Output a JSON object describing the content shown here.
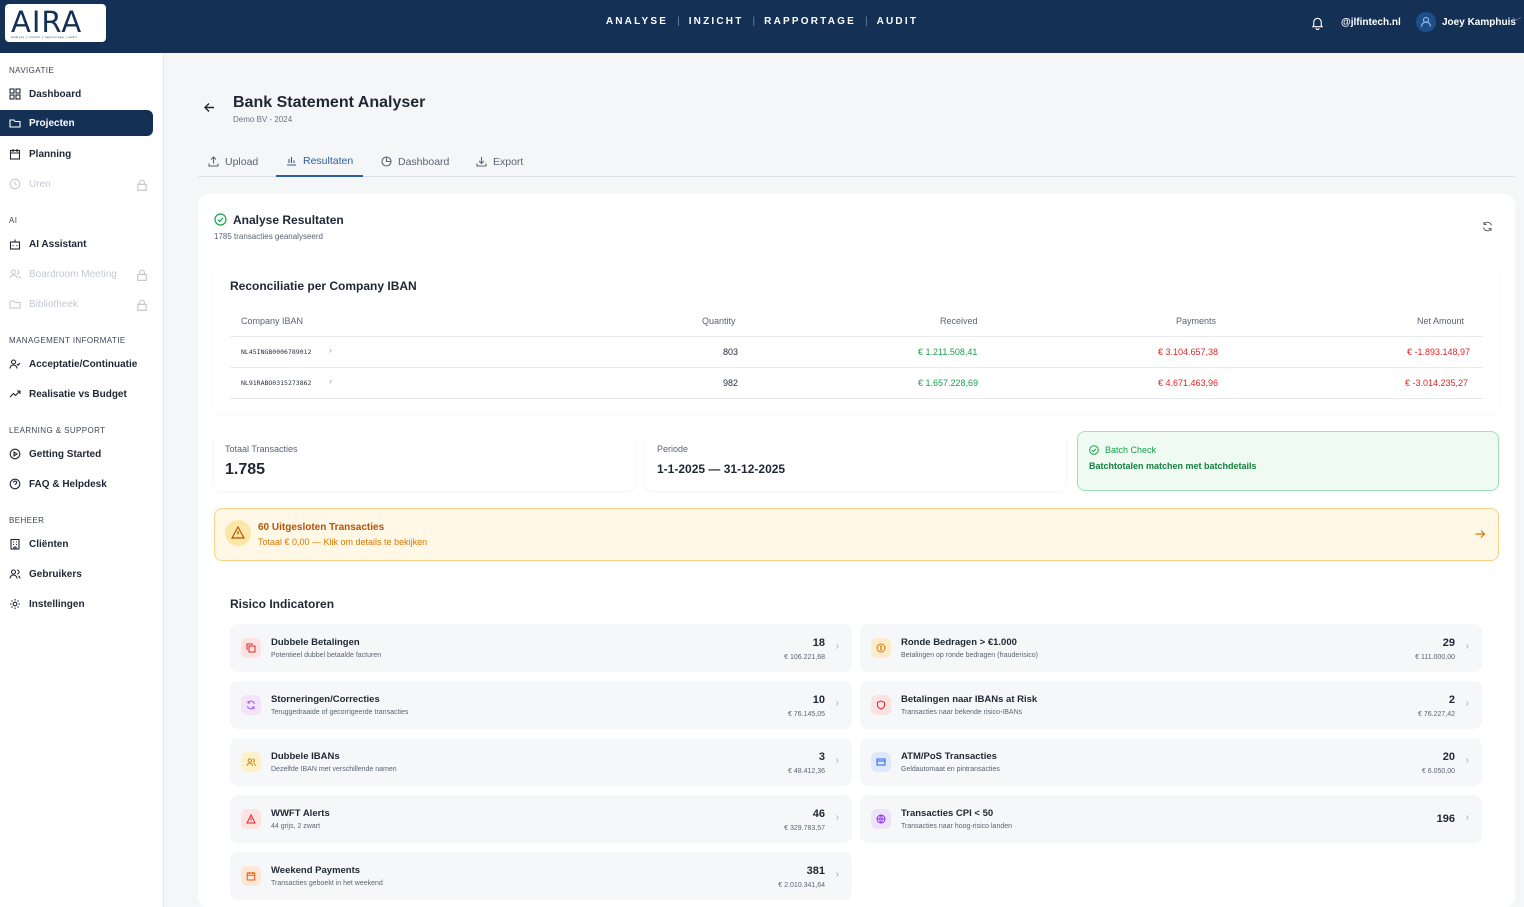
{
  "brand": {
    "logo": "AIRA",
    "tagline": "analyse | inzicht | rapportage | audit"
  },
  "topnav": [
    "ANALYSE",
    "INZICHT",
    "RAPPORTAGE",
    "AUDIT"
  ],
  "header": {
    "org": "@jlfintech.nl",
    "user": "Joey Kamphuis"
  },
  "sidebar": {
    "sections": {
      "nav": "NAVIGATIE",
      "ai": "AI",
      "mgmt": "MANAGEMENT INFORMATIE",
      "learning": "LEARNING & SUPPORT",
      "beheer": "BEHEER"
    },
    "items": {
      "dashboard": "Dashboard",
      "projecten": "Projecten",
      "planning": "Planning",
      "uren": "Uren",
      "ai_assistant": "AI Assistant",
      "boardroom": "Boardroom Meeting",
      "bibliotheek": "Bibliotheek",
      "acceptatie": "Acceptatie/Continuatie",
      "realisatie": "Realisatie vs Budget",
      "getting_started": "Getting Started",
      "faq": "FAQ & Helpdesk",
      "clienten": "Cliënten",
      "gebruikers": "Gebruikers",
      "instellingen": "Instellingen"
    }
  },
  "page": {
    "title": "Bank Statement Analyser",
    "subtitle": "Demo BV - 2024"
  },
  "tabs": {
    "upload": "Upload",
    "resultaten": "Resultaten",
    "dashboard": "Dashboard",
    "export": "Export"
  },
  "results": {
    "title": "Analyse Resultaten",
    "subtitle": "1785 transacties geanalyseerd"
  },
  "recon": {
    "title": "Reconciliatie per Company IBAN",
    "headers": {
      "iban": "Company IBAN",
      "quantity": "Quantity",
      "received": "Received",
      "payments": "Payments",
      "net": "Net Amount"
    },
    "rows": [
      {
        "iban": "NL45INGB0006789012",
        "quantity": "803",
        "received": "€ 1.211.508,41",
        "payments": "€ 3.104.657,38",
        "net": "€ -1.893.148,97"
      },
      {
        "iban": "NL91RABO0315273862",
        "quantity": "982",
        "received": "€ 1.657.228,69",
        "payments": "€ 4.671.463,96",
        "net": "€ -3.014.235,27"
      }
    ]
  },
  "stats": {
    "total_label": "Totaal Transacties",
    "total_value": "1.785",
    "period_label": "Periode",
    "period_value": "1-1-2025 — 31-12-2025",
    "batch_label": "Batch Check",
    "batch_text": "Batchtotalen matchen met batchdetails"
  },
  "excluded": {
    "title": "60 Uitgesloten Transacties",
    "subtitle": "Totaal € 0,00 — Klik om details te bekijken"
  },
  "risk": {
    "title": "Risico Indicatoren",
    "items": [
      {
        "name": "Dubbele Betalingen",
        "desc": "Potentieel dubbel betaalde facturen",
        "count": "18",
        "amount": "€ 106.221,68",
        "icon": "copy-icon",
        "color": "#fde2e2"
      },
      {
        "name": "Ronde Bedragen > €1.000",
        "desc": "Betalingen op ronde bedragen (frauderisico)",
        "count": "29",
        "amount": "€ 111.000,00",
        "icon": "coin-icon",
        "color": "#fdeccb"
      },
      {
        "name": "Storneringen/Correcties",
        "desc": "Teruggedraaide of gecorrigeerde transacties",
        "count": "10",
        "amount": "€ 76.145,05",
        "icon": "refresh-icon",
        "color": "#f3e3fb"
      },
      {
        "name": "Betalingen naar IBANs at Risk",
        "desc": "Transacties naar bekende risico-IBANs",
        "count": "2",
        "amount": "€ 76.227,42",
        "icon": "shield-icon",
        "color": "#fde2e2"
      },
      {
        "name": "Dubbele IBANs",
        "desc": "Dezelfde IBAN met verschillende namen",
        "count": "3",
        "amount": "€ 48.412,36",
        "icon": "users-icon",
        "color": "#fdf1cc"
      },
      {
        "name": "ATM/PoS Transacties",
        "desc": "Geldautomaat en pintransacties",
        "count": "20",
        "amount": "€ 6.050,00",
        "icon": "card-icon",
        "color": "#dfe9fb"
      },
      {
        "name": "WWFT Alerts",
        "desc": "44 grijs, 2 zwart",
        "count": "46",
        "amount": "€ 329.783,57",
        "icon": "alert-icon",
        "color": "#fde2e2"
      },
      {
        "name": "Transacties CPI < 50",
        "desc": "Transacties naar hoog-risico landen",
        "count": "196",
        "amount": "",
        "icon": "globe-icon",
        "color": "#efe3fb"
      },
      {
        "name": "Weekend Payments",
        "desc": "Transacties geboekt in het weekend",
        "count": "381",
        "amount": "€ 2.010.341,64",
        "icon": "calendar-icon",
        "color": "#fde7d6"
      }
    ]
  }
}
